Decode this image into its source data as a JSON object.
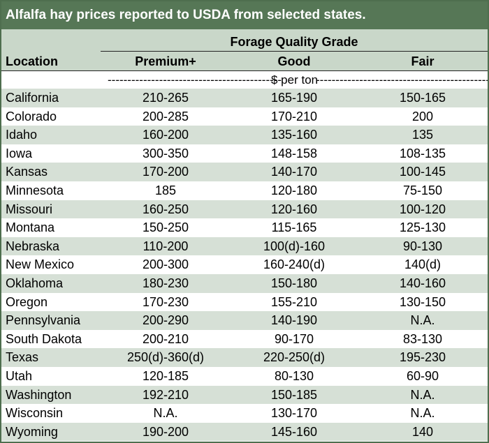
{
  "title": "Alfalfa hay prices reported to USDA from selected states.",
  "header": {
    "group": "Forage Quality Grade",
    "location": "Location",
    "premium": "Premium+",
    "good": "Good",
    "fair": "Fair"
  },
  "units": {
    "dashes_left": "--------------------------------------------",
    "label": "$ per ton",
    "dashes_right": "--------------------------------------------"
  },
  "rows": [
    {
      "location": "California",
      "premium": "210-265",
      "good": "165-190",
      "fair": "150-165"
    },
    {
      "location": "Colorado",
      "premium": "200-285",
      "good": "170-210",
      "fair": "200"
    },
    {
      "location": "Idaho",
      "premium": "160-200",
      "good": "135-160",
      "fair": "135"
    },
    {
      "location": "Iowa",
      "premium": "300-350",
      "good": "148-158",
      "fair": "108-135"
    },
    {
      "location": "Kansas",
      "premium": "170-200",
      "good": "140-170",
      "fair": "100-145"
    },
    {
      "location": "Minnesota",
      "premium": "185",
      "good": "120-180",
      "fair": "75-150"
    },
    {
      "location": "Missouri",
      "premium": "160-250",
      "good": "120-160",
      "fair": "100-120"
    },
    {
      "location": "Montana",
      "premium": "150-250",
      "good": "115-165",
      "fair": "125-130"
    },
    {
      "location": "Nebraska",
      "premium": "110-200",
      "good": "100(d)-160",
      "fair": "90-130"
    },
    {
      "location": "New Mexico",
      "premium": "200-300",
      "good": "160-240(d)",
      "fair": "140(d)"
    },
    {
      "location": "Oklahoma",
      "premium": "180-230",
      "good": "150-180",
      "fair": "140-160"
    },
    {
      "location": "Oregon",
      "premium": "170-230",
      "good": "155-210",
      "fair": "130-150"
    },
    {
      "location": "Pennsylvania",
      "premium": "200-290",
      "good": "140-190",
      "fair": "N.A."
    },
    {
      "location": "South Dakota",
      "premium": "200-210",
      "good": "90-170",
      "fair": "83-130"
    },
    {
      "location": "Texas",
      "premium": "250(d)-360(d)",
      "good": "220-250(d)",
      "fair": "195-230"
    },
    {
      "location": "Utah",
      "premium": "120-185",
      "good": "80-130",
      "fair": "60-90"
    },
    {
      "location": "Washington",
      "premium": "192-210",
      "good": "150-185",
      "fair": "N.A."
    },
    {
      "location": "Wisconsin",
      "premium": "N.A.",
      "good": "130-170",
      "fair": "N.A."
    },
    {
      "location": "Wyoming",
      "premium": "190-200",
      "good": "145-160",
      "fair": "140"
    }
  ]
}
